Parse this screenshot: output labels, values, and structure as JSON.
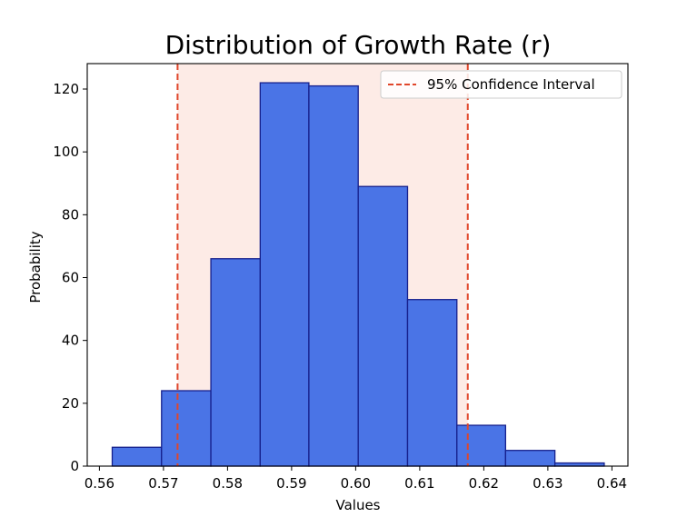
{
  "chart_data": {
    "type": "bar",
    "title": "Distribution of Growth Rate (r)",
    "xlabel": "Values",
    "ylabel": "Probability",
    "xlim": [
      0.5581,
      0.6425
    ],
    "ylim": [
      0,
      128.1
    ],
    "xticks": [
      0.56,
      0.57,
      0.58,
      0.59,
      0.6,
      0.61,
      0.62,
      0.63,
      0.64
    ],
    "xtick_labels": [
      "0.56",
      "0.57",
      "0.58",
      "0.59",
      "0.60",
      "0.61",
      "0.62",
      "0.63",
      "0.64"
    ],
    "yticks": [
      0,
      20,
      40,
      60,
      80,
      100,
      120
    ],
    "ytick_labels": [
      "0",
      "20",
      "40",
      "60",
      "80",
      "100",
      "120"
    ],
    "bin_edges": [
      0.562,
      0.5697,
      0.5774,
      0.5851,
      0.5927,
      0.6004,
      0.6081,
      0.6158,
      0.6234,
      0.6311,
      0.6388
    ],
    "counts": [
      6,
      24,
      66,
      122,
      121,
      89,
      53,
      13,
      5,
      1
    ],
    "confidence_interval": {
      "label": "95% Confidence Interval",
      "lower": 0.5722,
      "upper": 0.6175
    },
    "grid": false,
    "legend_position": "top-right",
    "colors": {
      "bar_fill": "#4a74e6",
      "bar_edge": "#16208c",
      "ci_line": "#e0462a",
      "ci_band": "#fdebe6"
    }
  }
}
